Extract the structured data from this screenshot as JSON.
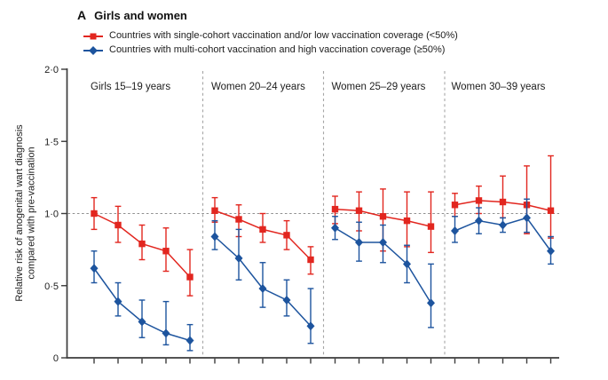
{
  "figure": {
    "panel_letter": "A",
    "title": "Girls and women"
  },
  "legend": [
    {
      "label": "Countries with single-cohort vaccination and/or low vaccination coverage (<50%)",
      "marker": "square",
      "color": "#e2261f"
    },
    {
      "label": "Countries with multi-cohort vaccination and high vaccination coverage (≥50%)",
      "marker": "diamond",
      "color": "#1d549e"
    }
  ],
  "chart_data": {
    "type": "line",
    "title": "A Girls and women",
    "ylabel": "Relative risk of anogenital wart diagnosis compared with pre-vaccination",
    "ylabel_lines": [
      "Relative risk of anogenital wart diagnosis",
      "compared with pre-vaccination"
    ],
    "ylim": [
      0,
      2.0
    ],
    "yticks": [
      {
        "value": 2.0,
        "label": "2·0"
      },
      {
        "value": 1.5,
        "label": "1·5"
      },
      {
        "value": 1.0,
        "label": "1·0"
      },
      {
        "value": 0.5,
        "label": "0·5"
      },
      {
        "value": 0.0,
        "label": "0"
      }
    ],
    "reference_line": 1.0,
    "grid": false,
    "legend_position": "top-left",
    "x_axis": {
      "tick_labels_visible": false,
      "ticks_per_panel": 5
    },
    "series_meta": [
      {
        "key": "single_cohort",
        "name": "Countries with single-cohort vaccination and/or low vaccination coverage (<50%)",
        "marker": "square",
        "color": "#e2261f"
      },
      {
        "key": "multi_cohort",
        "name": "Countries with multi-cohort vaccination and high vaccination coverage (≥50%)",
        "marker": "diamond",
        "color": "#1d549e"
      }
    ],
    "panels": [
      {
        "label": "Girls 15–19 years",
        "series": [
          {
            "key": "single_cohort",
            "rr": [
              1.0,
              0.92,
              0.79,
              0.74,
              0.56
            ],
            "ci_low": [
              0.89,
              0.8,
              0.68,
              0.6,
              0.43
            ],
            "ci_high": [
              1.11,
              1.05,
              0.92,
              0.9,
              0.75
            ]
          },
          {
            "key": "multi_cohort",
            "rr": [
              0.62,
              0.39,
              0.25,
              0.17,
              0.12
            ],
            "ci_low": [
              0.52,
              0.29,
              0.14,
              0.09,
              0.05
            ],
            "ci_high": [
              0.74,
              0.52,
              0.4,
              0.39,
              0.23
            ]
          }
        ]
      },
      {
        "label": "Women 20–24 years",
        "series": [
          {
            "key": "single_cohort",
            "rr": [
              1.02,
              0.96,
              0.89,
              0.85,
              0.68
            ],
            "ci_low": [
              0.94,
              0.84,
              0.8,
              0.75,
              0.58
            ],
            "ci_high": [
              1.11,
              1.06,
              1.0,
              0.95,
              0.77
            ]
          },
          {
            "key": "multi_cohort",
            "rr": [
              0.84,
              0.69,
              0.48,
              0.4,
              0.22
            ],
            "ci_low": [
              0.75,
              0.54,
              0.35,
              0.29,
              0.1
            ],
            "ci_high": [
              0.95,
              0.89,
              0.66,
              0.54,
              0.48
            ]
          }
        ]
      },
      {
        "label": "Women 25–29 years",
        "series": [
          {
            "key": "single_cohort",
            "rr": [
              1.03,
              1.02,
              0.98,
              0.95,
              0.91
            ],
            "ci_low": [
              0.93,
              0.88,
              0.74,
              0.77,
              0.73
            ],
            "ci_high": [
              1.12,
              1.15,
              1.17,
              1.15,
              1.15
            ]
          },
          {
            "key": "multi_cohort",
            "rr": [
              0.9,
              0.8,
              0.8,
              0.65,
              0.38
            ],
            "ci_low": [
              0.82,
              0.67,
              0.66,
              0.52,
              0.21
            ],
            "ci_high": [
              0.98,
              0.94,
              0.92,
              0.78,
              0.65
            ]
          }
        ]
      },
      {
        "label": "Women 30–39 years",
        "series": [
          {
            "key": "single_cohort",
            "rr": [
              1.06,
              1.09,
              1.08,
              1.06,
              1.02
            ],
            "ci_low": [
              0.98,
              1.0,
              0.97,
              0.86,
              0.83
            ],
            "ci_high": [
              1.14,
              1.19,
              1.26,
              1.33,
              1.4
            ]
          },
          {
            "key": "multi_cohort",
            "rr": [
              0.88,
              0.95,
              0.92,
              0.97,
              0.74
            ],
            "ci_low": [
              0.8,
              0.86,
              0.87,
              0.87,
              0.65
            ],
            "ci_high": [
              0.98,
              1.04,
              0.97,
              1.1,
              0.84
            ]
          }
        ]
      }
    ]
  }
}
